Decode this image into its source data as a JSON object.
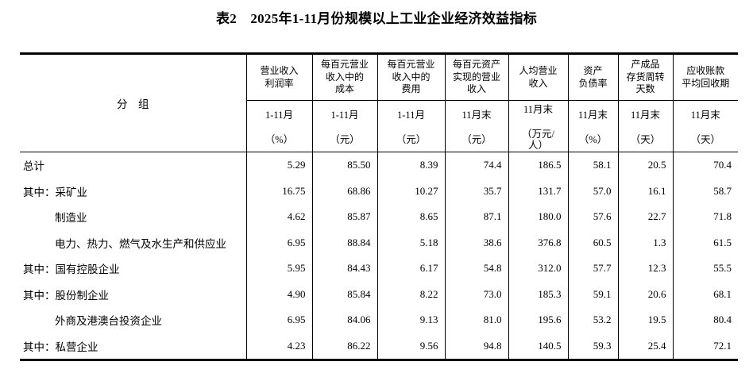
{
  "title": "表2　2025年1-11月份规模以上工业企业经济效益指标",
  "colors": {
    "text": "#000000",
    "background": "#ffffff",
    "rule": "#000000"
  },
  "table": {
    "group_header": "分　组",
    "columns": [
      {
        "name": "营业收入\n利润率",
        "period": "1-11月",
        "unit": "（%）"
      },
      {
        "name": "每百元营业\n收入中的\n成本",
        "period": "1-11月",
        "unit": "（元）"
      },
      {
        "name": "每百元营业\n收入中的\n费用",
        "period": "1-11月",
        "unit": "（元）"
      },
      {
        "name": "每百元资产\n实现的营业\n收入",
        "period": "11月末",
        "unit": "（元）"
      },
      {
        "name": "人均营业\n收入",
        "period": "11月末",
        "unit": "（万元/\n人）"
      },
      {
        "name": "资产\n负债率",
        "period": "11月末",
        "unit": "（%）"
      },
      {
        "name": "产成品\n存货周转\n天数",
        "period": "11月末",
        "unit": "（天）"
      },
      {
        "name": "应收账款\n平均回收期",
        "period": "11月末",
        "unit": "（天）"
      }
    ],
    "rows": [
      {
        "label": "总计",
        "indent": false,
        "values": [
          "5.29",
          "85.50",
          "8.39",
          "74.4",
          "186.5",
          "58.1",
          "20.5",
          "70.4"
        ]
      },
      {
        "label": "其中：采矿业",
        "indent": false,
        "values": [
          "16.75",
          "68.86",
          "10.27",
          "35.7",
          "131.7",
          "57.0",
          "16.1",
          "58.7"
        ]
      },
      {
        "label": "制造业",
        "indent": true,
        "values": [
          "4.62",
          "85.87",
          "8.65",
          "87.1",
          "180.0",
          "57.6",
          "22.7",
          "71.8"
        ]
      },
      {
        "label": "电力、热力、燃气及水生产和供应业",
        "indent": true,
        "values": [
          "6.95",
          "88.84",
          "5.18",
          "38.6",
          "376.8",
          "60.5",
          "1.3",
          "61.5"
        ]
      },
      {
        "label": "其中：国有控股企业",
        "indent": false,
        "values": [
          "5.95",
          "84.43",
          "6.17",
          "54.8",
          "312.0",
          "57.7",
          "12.3",
          "55.5"
        ]
      },
      {
        "label": "其中：股份制企业",
        "indent": false,
        "values": [
          "4.90",
          "85.84",
          "8.22",
          "73.0",
          "185.3",
          "59.1",
          "20.6",
          "68.1"
        ]
      },
      {
        "label": "外商及港澳台投资企业",
        "indent": true,
        "values": [
          "6.95",
          "84.06",
          "9.13",
          "81.0",
          "195.6",
          "53.2",
          "19.5",
          "80.4"
        ]
      },
      {
        "label": "其中：私营企业",
        "indent": false,
        "values": [
          "4.23",
          "86.22",
          "9.56",
          "94.8",
          "140.5",
          "59.3",
          "25.4",
          "72.1"
        ]
      }
    ]
  }
}
